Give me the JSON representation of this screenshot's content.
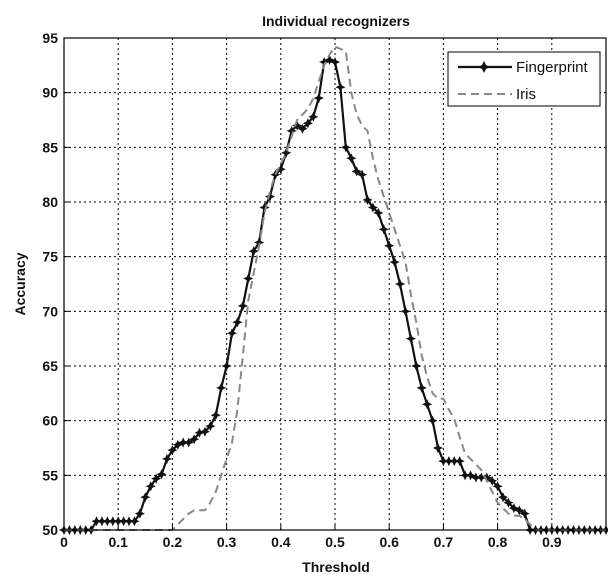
{
  "chart_data": {
    "type": "line",
    "title": "Individual recognizers",
    "xlabel": "Threshold",
    "ylabel": "Accuracy",
    "xlim": [
      0,
      1
    ],
    "ylim": [
      50,
      95
    ],
    "xticks": [
      "0",
      "0.1",
      "0.2",
      "0.3",
      "0.4",
      "0.5",
      "0.6",
      "0.7",
      "0.8",
      "0.9"
    ],
    "xtick_values": [
      0,
      0.1,
      0.2,
      0.3,
      0.4,
      0.5,
      0.6,
      0.7,
      0.8,
      0.9
    ],
    "yticks": [
      "50",
      "55",
      "60",
      "65",
      "70",
      "75",
      "80",
      "85",
      "90",
      "95"
    ],
    "ytick_values": [
      50,
      55,
      60,
      65,
      70,
      75,
      80,
      85,
      90,
      95
    ],
    "grid": true,
    "legend_position": "top-right",
    "series": [
      {
        "name": "Fingerprint",
        "color": "#111111",
        "style": "solid",
        "marker": "star",
        "x": [
          0,
          0.01,
          0.02,
          0.03,
          0.04,
          0.05,
          0.06,
          0.07,
          0.08,
          0.09,
          0.1,
          0.11,
          0.12,
          0.13,
          0.14,
          0.15,
          0.16,
          0.17,
          0.18,
          0.19,
          0.2,
          0.21,
          0.22,
          0.23,
          0.24,
          0.25,
          0.26,
          0.27,
          0.28,
          0.29,
          0.3,
          0.31,
          0.32,
          0.33,
          0.34,
          0.35,
          0.36,
          0.37,
          0.38,
          0.39,
          0.4,
          0.41,
          0.42,
          0.43,
          0.44,
          0.45,
          0.46,
          0.47,
          0.48,
          0.49,
          0.5,
          0.51,
          0.52,
          0.53,
          0.54,
          0.55,
          0.56,
          0.57,
          0.58,
          0.59,
          0.6,
          0.61,
          0.62,
          0.63,
          0.64,
          0.65,
          0.66,
          0.67,
          0.68,
          0.69,
          0.7,
          0.71,
          0.72,
          0.73,
          0.74,
          0.75,
          0.76,
          0.77,
          0.78,
          0.79,
          0.8,
          0.81,
          0.82,
          0.83,
          0.84,
          0.85,
          0.86,
          0.87,
          0.88,
          0.89,
          0.9,
          0.91,
          0.92,
          0.93,
          0.94,
          0.95,
          0.96,
          0.97,
          0.98,
          0.99,
          1.0
        ],
        "values": [
          50,
          50,
          50,
          50,
          50,
          50,
          50.8,
          50.8,
          50.8,
          50.8,
          50.8,
          50.8,
          50.8,
          50.8,
          51.5,
          53,
          54,
          54.7,
          55.1,
          56.5,
          57.3,
          57.8,
          58,
          58,
          58.3,
          58.9,
          59,
          59.5,
          60.5,
          63,
          65,
          68,
          69,
          70.5,
          73,
          75.5,
          76.3,
          79.5,
          80.5,
          82.5,
          83,
          84.5,
          86.5,
          87,
          86.7,
          87.2,
          87.8,
          89.5,
          92.8,
          93,
          92.8,
          90.5,
          85,
          84,
          82.8,
          82.5,
          80.2,
          79.5,
          79,
          77.5,
          76,
          74.5,
          72.5,
          70,
          67.5,
          65,
          63,
          61.5,
          60,
          57.5,
          56.3,
          56.3,
          56.3,
          56.3,
          55,
          55,
          54.8,
          54.8,
          54.8,
          54.5,
          54,
          53,
          52.5,
          52,
          51.8,
          51.5,
          50,
          50,
          50,
          50,
          50,
          50,
          50,
          50,
          50,
          50,
          50,
          50,
          50,
          50,
          50
        ]
      },
      {
        "name": "Iris",
        "color": "#888888",
        "style": "dashed",
        "marker": "none",
        "x": [
          0,
          0.02,
          0.04,
          0.06,
          0.08,
          0.1,
          0.12,
          0.14,
          0.16,
          0.18,
          0.2,
          0.21,
          0.22,
          0.23,
          0.24,
          0.25,
          0.26,
          0.27,
          0.28,
          0.29,
          0.3,
          0.31,
          0.32,
          0.33,
          0.34,
          0.35,
          0.36,
          0.37,
          0.38,
          0.39,
          0.4,
          0.41,
          0.42,
          0.43,
          0.44,
          0.45,
          0.46,
          0.47,
          0.48,
          0.49,
          0.5,
          0.51,
          0.52,
          0.53,
          0.54,
          0.55,
          0.56,
          0.57,
          0.58,
          0.59,
          0.6,
          0.61,
          0.62,
          0.63,
          0.64,
          0.65,
          0.66,
          0.67,
          0.68,
          0.69,
          0.7,
          0.71,
          0.72,
          0.73,
          0.74,
          0.75,
          0.76,
          0.77,
          0.78,
          0.79,
          0.8,
          0.81,
          0.82,
          0.83,
          0.84,
          0.85,
          0.86,
          0.87,
          0.88,
          0.9,
          0.92,
          0.94,
          0.96,
          0.98,
          1.0
        ],
        "values": [
          50,
          50,
          50,
          50,
          50,
          50,
          50,
          50,
          50,
          50,
          50,
          50.5,
          51,
          51.5,
          51.8,
          51.8,
          51.8,
          52.5,
          53.5,
          55,
          56.5,
          58,
          61,
          66,
          71,
          73.5,
          76,
          79,
          81,
          82.5,
          83.5,
          84.5,
          86,
          87.5,
          88,
          88.5,
          89.5,
          91,
          92.5,
          93.5,
          94.2,
          94,
          93.8,
          90,
          88,
          87,
          86.5,
          84,
          82,
          80.5,
          79,
          77.5,
          76,
          74.5,
          71.5,
          69,
          66,
          64,
          62.5,
          62,
          62,
          61,
          60.2,
          58.5,
          57,
          56.5,
          56,
          55.5,
          54.5,
          53.5,
          52.5,
          52,
          51.5,
          51.3,
          51.3,
          51,
          50.5,
          50,
          50,
          50,
          50,
          50,
          50,
          50,
          50
        ]
      }
    ]
  }
}
